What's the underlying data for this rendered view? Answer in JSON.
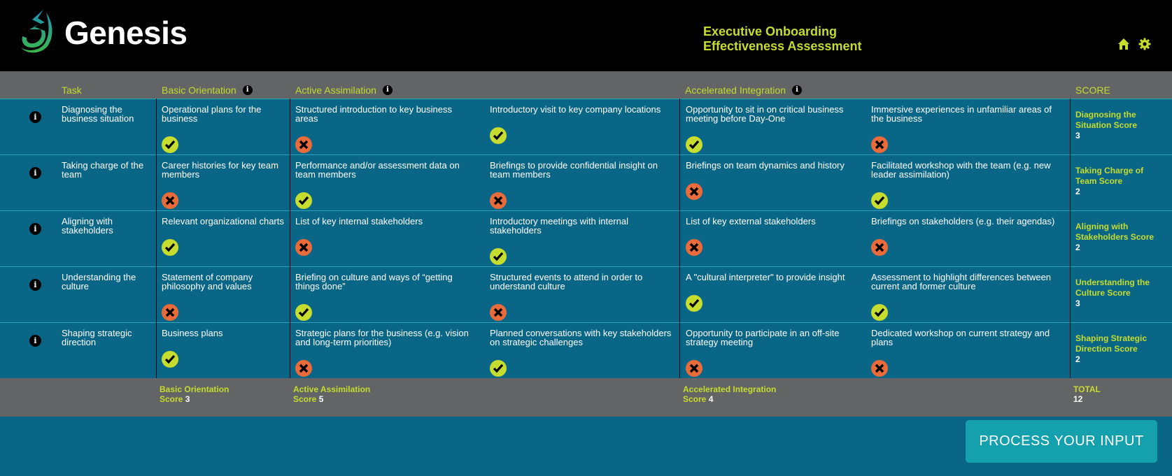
{
  "header": {
    "brand": "Genesis",
    "title_line1": "Executive Onboarding",
    "title_line2": "Effectiveness Assessment",
    "icons": [
      "home-icon",
      "gear-icon"
    ]
  },
  "columns": {
    "task": "Task",
    "basic": "Basic Orientation",
    "active": "Active Assimilation",
    "accelerated": "Accelerated Integration",
    "score": "SCORE"
  },
  "colors": {
    "accent": "#c6dc2e",
    "teal": "#0a6686",
    "gray": "#636466",
    "yes": "#c6dc2e",
    "no": "#ea6b3a",
    "button": "#14a0ad"
  },
  "rows": [
    {
      "task": "Diagnosing the business situation",
      "items": [
        {
          "text": "Operational plans for the business",
          "checked": true
        },
        {
          "text": "Structured introduction to key business areas",
          "checked": false
        },
        {
          "text": "Introductory visit to key company locations",
          "checked": true
        },
        {
          "text": "Opportunity to sit in on critical business meeting before Day-One",
          "checked": true
        },
        {
          "text": "Immersive experiences in unfamiliar areas of the business",
          "checked": false
        }
      ],
      "score_label": "Diagnosing the Situation Score",
      "score": "3"
    },
    {
      "task": "Taking charge of the team",
      "items": [
        {
          "text": "Career histories for key team members",
          "checked": false
        },
        {
          "text": "Performance and/or assessment data on team members",
          "checked": true
        },
        {
          "text": "Briefings to provide confidential insight on team members",
          "checked": false
        },
        {
          "text": "Briefings on team dynamics and history",
          "checked": false
        },
        {
          "text": "Facilitated workshop with the team (e.g. new leader assimilation)",
          "checked": true
        }
      ],
      "score_label": "Taking Charge of Team Score",
      "score": "2"
    },
    {
      "task": "Aligning with stakeholders",
      "items": [
        {
          "text": "Relevant organizational charts",
          "checked": true
        },
        {
          "text": "List of key internal stakeholders",
          "checked": false
        },
        {
          "text": "Introductory meetings with internal stakeholders",
          "checked": true
        },
        {
          "text": "List of key external stakeholders",
          "checked": false
        },
        {
          "text": "Briefings on stakeholders (e.g. their agendas)",
          "checked": false
        }
      ],
      "score_label": "Aligning with Stakeholders Score",
      "score": "2"
    },
    {
      "task": "Understanding the culture",
      "items": [
        {
          "text": "Statement of company philosophy and values",
          "checked": false
        },
        {
          "text": "Briefing on culture and ways of “getting things done”",
          "checked": true
        },
        {
          "text": "Structured events to attend in order to understand culture",
          "checked": false
        },
        {
          "text": "A \"cultural interpreter\" to provide insight",
          "checked": true
        },
        {
          "text": "Assessment to highlight differences between current and former culture",
          "checked": true
        }
      ],
      "score_label": "Understanding the Culture Score",
      "score": "3"
    },
    {
      "task": "Shaping strategic direction",
      "items": [
        {
          "text": "Business plans",
          "checked": true
        },
        {
          "text": "Strategic plans for the business (e.g. vision and long-term priorities)",
          "checked": false
        },
        {
          "text": "Planned conversations with key stakeholders on strategic challenges",
          "checked": true
        },
        {
          "text": "Opportunity to participate in an off-site strategy meeting",
          "checked": false
        },
        {
          "text": "Dedicated workshop on current strategy and plans",
          "checked": false
        }
      ],
      "score_label": "Shaping Strategic Direction Score",
      "score": "2"
    }
  ],
  "footer": {
    "basic_label1": "Basic Orientation",
    "basic_label2": "Score",
    "basic_score": "3",
    "active_label1": "Active Assimilation",
    "active_label2": "Score",
    "active_score": "5",
    "accel_label1": "Accelerated Integration",
    "accel_label2": "Score",
    "accel_score": "4",
    "total_label": "TOTAL",
    "total": "12"
  },
  "button": {
    "label": "PROCESS YOUR INPUT"
  }
}
